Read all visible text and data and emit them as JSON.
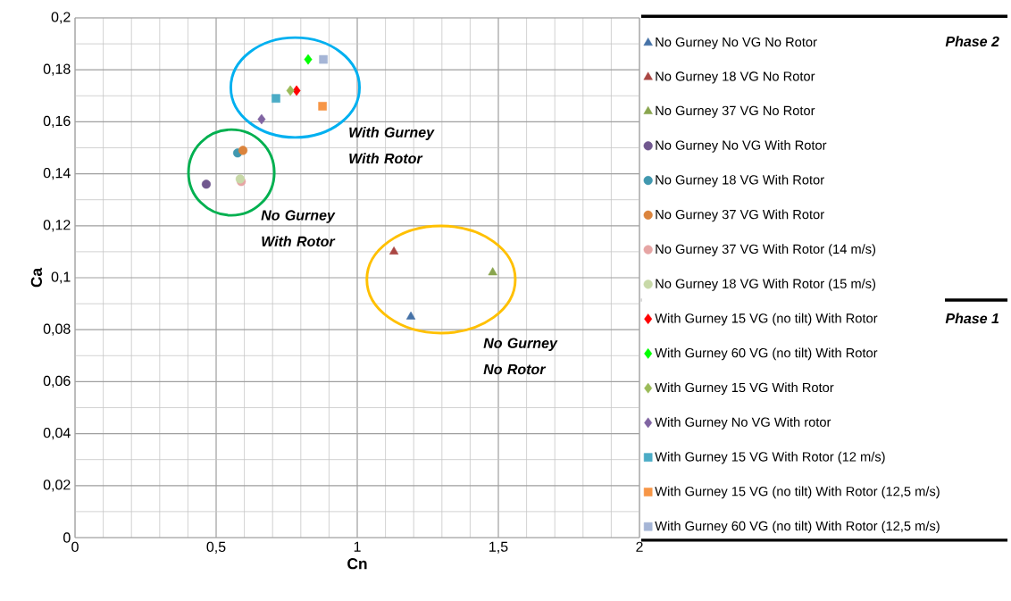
{
  "chart_data": {
    "type": "scatter",
    "xlabel": "Cn",
    "ylabel": "Ca",
    "xlim": [
      0,
      2
    ],
    "ylim": [
      0,
      0.2
    ],
    "xticks": [
      0,
      {
        "value": 0.5,
        "label": "0,5"
      },
      1,
      {
        "value": 1.5,
        "label": "1,5"
      },
      2
    ],
    "yticks": [
      0,
      {
        "value": 0.02,
        "label": "0,02"
      },
      {
        "value": 0.04,
        "label": "0,04"
      },
      {
        "value": 0.06,
        "label": "0,06"
      },
      {
        "value": 0.08,
        "label": "0,08"
      },
      {
        "value": 0.1,
        "label": "0,1"
      },
      {
        "value": 0.12,
        "label": "0,12"
      },
      {
        "value": 0.14,
        "label": "0,14"
      },
      {
        "value": 0.16,
        "label": "0,16"
      },
      {
        "value": 0.18,
        "label": "0,18"
      },
      {
        "value": 0.2,
        "label": "0,2"
      }
    ],
    "grid": true,
    "legend": "right",
    "series": [
      {
        "name": "No Gurney No VG No Rotor",
        "color": "#4572a7",
        "marker": "triangle",
        "x": [
          1.19
        ],
        "values": [
          0.085
        ]
      },
      {
        "name": "No Gurney 18 VG No Rotor",
        "color": "#aa4643",
        "marker": "triangle",
        "x": [
          1.13
        ],
        "values": [
          0.11
        ]
      },
      {
        "name": "No Gurney 37 VG No Rotor",
        "color": "#89a54e",
        "marker": "triangle",
        "x": [
          1.48
        ],
        "values": [
          0.102
        ]
      },
      {
        "name": "No Gurney No VG With Rotor",
        "color": "#71588f",
        "marker": "circle",
        "x": [
          0.465
        ],
        "values": [
          0.136
        ]
      },
      {
        "name": "No Gurney 18 VG With Rotor",
        "color": "#4198af",
        "marker": "circle",
        "x": [
          0.576
        ],
        "values": [
          0.148
        ]
      },
      {
        "name": "No Gurney 37 VG With Rotor",
        "color": "#db843d",
        "marker": "circle",
        "x": [
          0.595
        ],
        "values": [
          0.149
        ]
      },
      {
        "name": "No Gurney 37 VG With Rotor (14 m/s)",
        "color": "#e6a5a4",
        "marker": "circle",
        "x": [
          0.589
        ],
        "values": [
          0.137
        ]
      },
      {
        "name": "No Gurney 18 VG With Rotor (15 m/s)",
        "color": "#c8d9a8",
        "marker": "circle",
        "x": [
          0.585
        ],
        "values": [
          0.138
        ]
      },
      {
        "name": "With Gurney 15 VG (no tilt) With Rotor",
        "color": "#ff0000",
        "marker": "diamond",
        "x": [
          0.785
        ],
        "values": [
          0.172
        ]
      },
      {
        "name": "With Gurney 60 VG (no tilt) With Rotor",
        "color": "#00ff00",
        "marker": "diamond",
        "x": [
          0.826
        ],
        "values": [
          0.184
        ]
      },
      {
        "name": "With Gurney 15 VG  With Rotor",
        "color": "#9bbb59",
        "marker": "diamond",
        "x": [
          0.763
        ],
        "values": [
          0.172
        ]
      },
      {
        "name": "With Gurney No VG With rotor",
        "color": "#8064a2",
        "marker": "diamond",
        "x": [
          0.661
        ],
        "values": [
          0.161
        ]
      },
      {
        "name": "With Gurney 15 VG With Rotor (12 m/s)",
        "color": "#4bacc6",
        "marker": "square",
        "x": [
          0.712
        ],
        "values": [
          0.169
        ]
      },
      {
        "name": "With Gurney 15 VG (no tilt) With Rotor (12,5 m/s)",
        "color": "#f79646",
        "marker": "square",
        "x": [
          0.877
        ],
        "values": [
          0.166
        ]
      },
      {
        "name": "With Gurney 60 VG (no tilt) With Rotor (12,5 m/s)",
        "color": "#a5b5d6",
        "marker": "square",
        "x": [
          0.88
        ],
        "values": [
          0.184
        ]
      }
    ],
    "annotations": [
      "With Gurney With Rotor",
      "No Gurney With Rotor",
      "No Gurney No Rotor",
      "Phase 2",
      "Phase 1"
    ]
  }
}
